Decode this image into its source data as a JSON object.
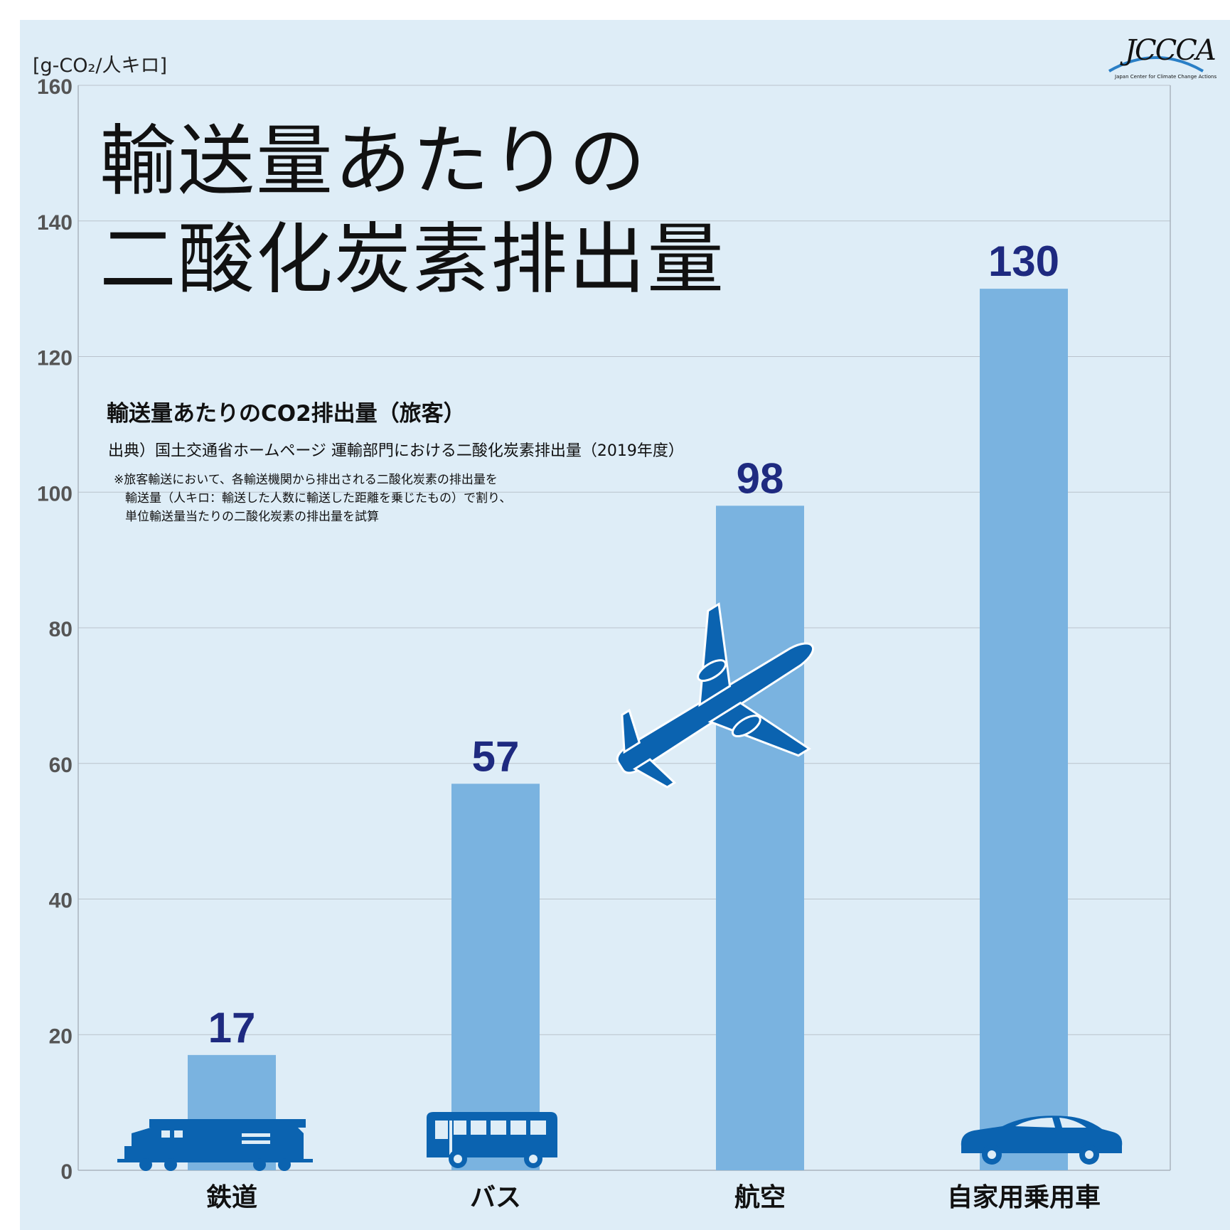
{
  "header": {
    "title_line1": "輸送量あたりの",
    "title_line2": "二酸化炭素排出量",
    "unit": "[g-CO₂/人キロ]",
    "subtitle": "輸送量あたりのCO2排出量（旅客）",
    "source": "出典）国土交通省ホームページ 運輸部門における二酸化炭素排出量（2019年度）",
    "notes": [
      "※旅客輸送において、各輸送機関から排出される二酸化炭素の排出量を",
      "輸送量（人キロ：輸送した人数に輸送した距離を乗じたもの）で割り、",
      "単位輸送量当たりの二酸化炭素の排出量を試算"
    ]
  },
  "logo": {
    "text": "JCCCA",
    "subtext": "Japan Center for Climate Change Actions"
  },
  "colors": {
    "bar": "#7ab3e0",
    "value_label": "#1e2a80",
    "icon": "#0b63b0",
    "grid": "#b9c3cc",
    "background": "#deedf7"
  },
  "chart_data": {
    "type": "bar",
    "categories": [
      "鉄道",
      "バス",
      "航空",
      "自家用乗用車"
    ],
    "values": [
      17,
      57,
      98,
      130
    ],
    "value_labels": [
      "17",
      "57",
      "98",
      "130"
    ],
    "icons": [
      "train-icon",
      "bus-icon",
      "airplane-icon",
      "car-icon"
    ],
    "ylim": [
      0,
      160
    ],
    "yticks": [
      0,
      20,
      40,
      60,
      80,
      100,
      120,
      140,
      160
    ],
    "grid": true,
    "ylabel": "[g-CO₂/人キロ]"
  }
}
